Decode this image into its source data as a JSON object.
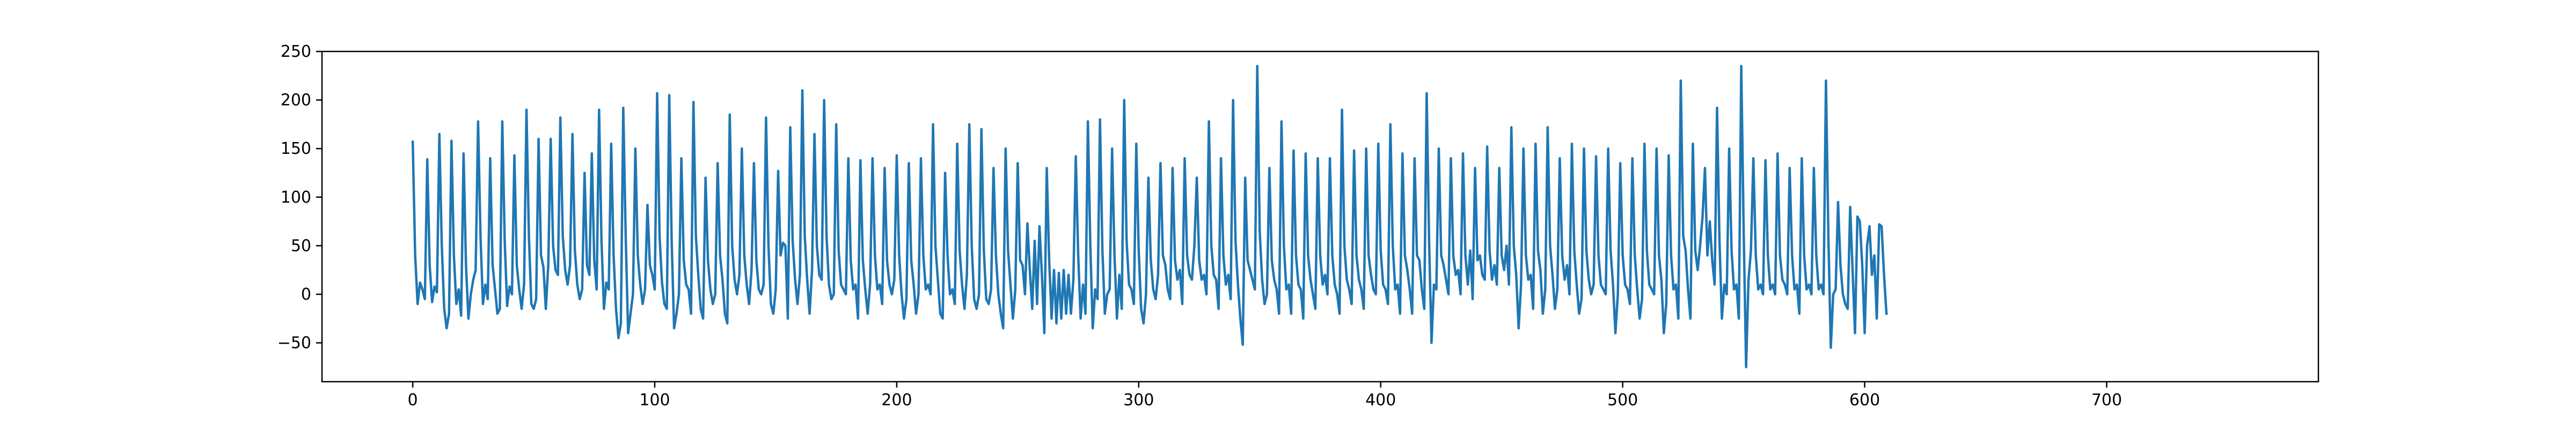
{
  "chart_data": {
    "type": "line",
    "title": "",
    "xlabel": "",
    "ylabel": "",
    "xlim": [
      -37.5,
      787.5
    ],
    "ylim": [
      -90,
      250
    ],
    "x_ticks": [
      0,
      100,
      200,
      300,
      400,
      500,
      600,
      700
    ],
    "y_ticks": [
      -50,
      0,
      50,
      100,
      150,
      200,
      250
    ],
    "x_tick_labels": [
      "0",
      "100",
      "200",
      "300",
      "400",
      "500",
      "600",
      "700"
    ],
    "y_tick_labels": [
      "−50",
      "0",
      "50",
      "100",
      "150",
      "200",
      "250"
    ],
    "grid": false,
    "legend": "none",
    "line_color": "#1f77b4",
    "series": [
      {
        "x_start": 0,
        "x_step": 1,
        "values": [
          157,
          40,
          -10,
          12,
          5,
          -5,
          139,
          30,
          -8,
          8,
          2,
          165,
          50,
          -15,
          -35,
          -20,
          158,
          40,
          -10,
          5,
          -22,
          145,
          30,
          -25,
          0,
          15,
          25,
          178,
          60,
          -10,
          10,
          -5,
          140,
          30,
          5,
          -20,
          -15,
          178,
          55,
          -12,
          8,
          0,
          143,
          30,
          5,
          -15,
          10,
          190,
          60,
          -10,
          -15,
          -5,
          160,
          40,
          28,
          -15,
          30,
          160,
          50,
          25,
          20,
          182,
          60,
          25,
          10,
          30,
          165,
          45,
          10,
          -5,
          5,
          125,
          30,
          20,
          145,
          35,
          5,
          190,
          55,
          -15,
          12,
          5,
          155,
          40,
          -15,
          -45,
          -30,
          192,
          60,
          -40,
          -20,
          0,
          150,
          40,
          10,
          -10,
          5,
          92,
          30,
          20,
          5,
          207,
          60,
          12,
          -10,
          -15,
          205,
          55,
          -35,
          -20,
          0,
          140,
          35,
          10,
          5,
          -20,
          198,
          60,
          20,
          -15,
          -25,
          120,
          35,
          5,
          -10,
          0,
          135,
          40,
          15,
          -20,
          -30,
          185,
          50,
          15,
          0,
          20,
          150,
          40,
          10,
          -10,
          25,
          135,
          35,
          5,
          0,
          10,
          182,
          50,
          -10,
          -20,
          5,
          127,
          40,
          53,
          50,
          -25,
          172,
          55,
          15,
          -10,
          20,
          210,
          60,
          15,
          -20,
          25,
          165,
          50,
          20,
          15,
          200,
          60,
          10,
          -5,
          0,
          175,
          45,
          10,
          5,
          0,
          140,
          35,
          5,
          10,
          -25,
          138,
          35,
          5,
          -20,
          10,
          140,
          40,
          5,
          10,
          -10,
          130,
          35,
          10,
          0,
          15,
          143,
          40,
          0,
          -25,
          -5,
          135,
          35,
          10,
          -20,
          0,
          140,
          40,
          5,
          10,
          0,
          175,
          50,
          15,
          -20,
          -25,
          125,
          40,
          0,
          5,
          -10,
          155,
          45,
          10,
          -15,
          20,
          175,
          50,
          -5,
          -15,
          0,
          170,
          45,
          -5,
          -10,
          5,
          130,
          40,
          0,
          -20,
          -35,
          150,
          45,
          10,
          -25,
          5,
          135,
          35,
          30,
          0,
          73,
          25,
          -15,
          55,
          -10,
          70,
          20,
          -40,
          130,
          35,
          -25,
          25,
          -30,
          22,
          -25,
          25,
          -20,
          20,
          -20,
          15,
          142,
          40,
          -25,
          10,
          -20,
          178,
          50,
          -35,
          5,
          -5,
          180,
          45,
          -20,
          0,
          5,
          150,
          40,
          -25,
          20,
          -15,
          200,
          55,
          10,
          5,
          -10,
          155,
          45,
          -15,
          -30,
          0,
          120,
          35,
          5,
          -5,
          20,
          135,
          40,
          30,
          5,
          -5,
          130,
          35,
          15,
          25,
          -10,
          140,
          40,
          20,
          15,
          50,
          120,
          35,
          15,
          20,
          0,
          178,
          50,
          20,
          15,
          -15,
          140,
          40,
          10,
          20,
          -5,
          200,
          55,
          10,
          -25,
          -52,
          120,
          35,
          25,
          15,
          5,
          235,
          65,
          15,
          -10,
          0,
          130,
          35,
          15,
          5,
          -20,
          178,
          50,
          5,
          10,
          -20,
          148,
          40,
          10,
          5,
          -25,
          145,
          40,
          15,
          0,
          -15,
          140,
          40,
          10,
          20,
          0,
          140,
          40,
          10,
          0,
          -20,
          190,
          50,
          15,
          5,
          -10,
          148,
          40,
          15,
          5,
          -15,
          150,
          40,
          20,
          5,
          0,
          155,
          45,
          10,
          5,
          -10,
          175,
          50,
          5,
          10,
          -20,
          145,
          40,
          25,
          5,
          -20,
          140,
          40,
          35,
          5,
          -15,
          207,
          55,
          -50,
          10,
          5,
          150,
          40,
          30,
          15,
          0,
          140,
          40,
          20,
          25,
          0,
          145,
          40,
          10,
          45,
          -5,
          130,
          35,
          40,
          20,
          15,
          152,
          45,
          15,
          30,
          10,
          130,
          40,
          25,
          50,
          10,
          172,
          50,
          20,
          -35,
          10,
          150,
          40,
          15,
          20,
          -15,
          155,
          45,
          25,
          -20,
          5,
          172,
          50,
          20,
          -15,
          5,
          140,
          40,
          15,
          30,
          0,
          155,
          45,
          10,
          -20,
          -5,
          150,
          45,
          15,
          0,
          10,
          142,
          40,
          10,
          5,
          0,
          150,
          45,
          10,
          -40,
          0,
          135,
          40,
          10,
          5,
          -10,
          140,
          40,
          5,
          -25,
          -5,
          155,
          45,
          10,
          5,
          0,
          150,
          40,
          15,
          -40,
          -10,
          143,
          40,
          5,
          10,
          -25,
          220,
          60,
          45,
          5,
          -25,
          155,
          45,
          25,
          50,
          80,
          130,
          40,
          75,
          35,
          10,
          192,
          55,
          -25,
          10,
          0,
          150,
          45,
          5,
          10,
          -25,
          235,
          65,
          -75,
          15,
          45,
          140,
          40,
          5,
          10,
          0,
          138,
          40,
          5,
          10,
          0,
          145,
          40,
          15,
          10,
          0,
          130,
          40,
          5,
          10,
          -20,
          140,
          40,
          5,
          10,
          0,
          130,
          40,
          5,
          10,
          0,
          220,
          60,
          -55,
          0,
          5,
          95,
          30,
          0,
          -10,
          -15,
          90,
          25,
          -40,
          80,
          75,
          30,
          -40,
          50,
          70,
          20,
          40,
          -25,
          72,
          70,
          20,
          -20
        ]
      }
    ]
  }
}
